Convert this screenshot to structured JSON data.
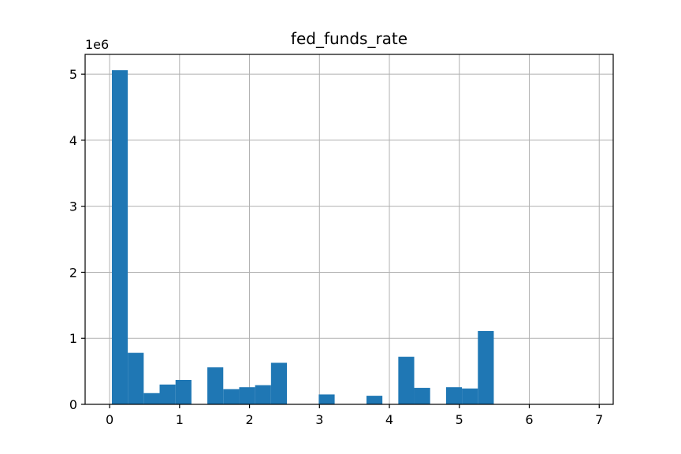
{
  "chart_data": {
    "type": "bar",
    "title": "fed_funds_rate",
    "xlabel": "",
    "ylabel": "",
    "y_offset_label": "1e6",
    "xlim": [
      -0.35,
      7.2
    ],
    "ylim": [
      0,
      5.3
    ],
    "x_ticks": [
      0,
      1,
      2,
      3,
      4,
      5,
      6,
      7
    ],
    "y_ticks": [
      0,
      1,
      2,
      3,
      4,
      5
    ],
    "grid": true,
    "bar_color": "#1f77b4",
    "bin_width": 0.2275,
    "bins": [
      {
        "x0": 0.0325,
        "value": 5.06
      },
      {
        "x0": 0.26,
        "value": 0.78
      },
      {
        "x0": 0.4875,
        "value": 0.17
      },
      {
        "x0": 0.715,
        "value": 0.3
      },
      {
        "x0": 0.9425,
        "value": 0.37
      },
      {
        "x0": 1.17,
        "value": 0.0
      },
      {
        "x0": 1.3975,
        "value": 0.56
      },
      {
        "x0": 1.625,
        "value": 0.23
      },
      {
        "x0": 1.8525,
        "value": 0.26
      },
      {
        "x0": 2.08,
        "value": 0.29
      },
      {
        "x0": 2.3075,
        "value": 0.63
      },
      {
        "x0": 2.535,
        "value": 0.0
      },
      {
        "x0": 2.7625,
        "value": 0.0
      },
      {
        "x0": 2.99,
        "value": 0.15
      },
      {
        "x0": 3.2175,
        "value": 0.0
      },
      {
        "x0": 3.445,
        "value": 0.0
      },
      {
        "x0": 3.6725,
        "value": 0.13
      },
      {
        "x0": 3.9,
        "value": 0.0
      },
      {
        "x0": 4.1275,
        "value": 0.72
      },
      {
        "x0": 4.355,
        "value": 0.25
      },
      {
        "x0": 4.5825,
        "value": 0.0
      },
      {
        "x0": 4.81,
        "value": 0.26
      },
      {
        "x0": 5.0375,
        "value": 0.24
      },
      {
        "x0": 5.265,
        "value": 1.11
      },
      {
        "x0": 5.4925,
        "value": 0.0
      },
      {
        "x0": 5.72,
        "value": 0.0
      },
      {
        "x0": 5.9475,
        "value": 0.0
      },
      {
        "x0": 6.175,
        "value": 0.0
      },
      {
        "x0": 6.4025,
        "value": 0.0
      },
      {
        "x0": 6.63,
        "value": 0.0
      }
    ]
  }
}
